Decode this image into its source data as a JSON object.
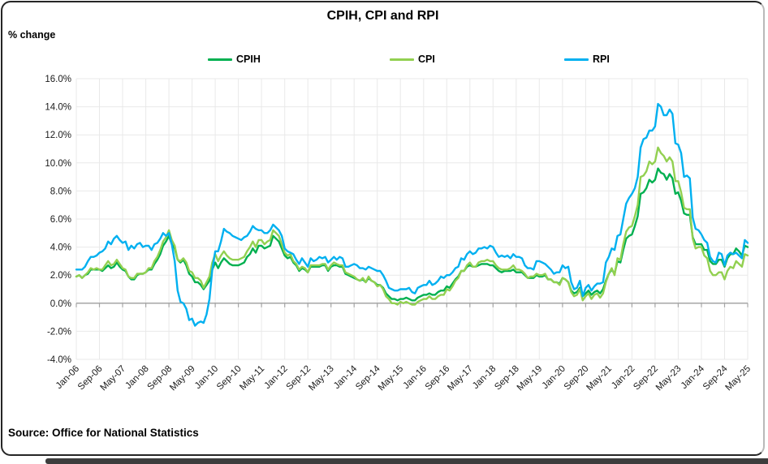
{
  "source_note": "Source: Office for National Statistics",
  "chart_data": {
    "type": "line",
    "title": "CPIH, CPI and RPI",
    "ylabel": "% change",
    "x_start": "Jan-06",
    "x_end": "May-25",
    "x_frequency": "monthly",
    "xticks": [
      "Jan-06",
      "Sep-06",
      "May-07",
      "Jan-08",
      "Sep-08",
      "May-09",
      "Jan-10",
      "Sep-10",
      "May-11",
      "Jan-12",
      "Sep-12",
      "May-13",
      "Jan-14",
      "Sep-14",
      "May-15",
      "Jan-16",
      "Sep-16",
      "May-17",
      "Jan-18",
      "Sep-18",
      "May-19",
      "Jan-20",
      "Sep-20",
      "May-21",
      "Jan-22",
      "Sep-22",
      "May-23",
      "Jan-24",
      "Sep-24",
      "May-25"
    ],
    "xtick_every": 8,
    "ylim": [
      -4,
      16
    ],
    "ytick_step": 2,
    "yticks": [
      -4,
      -2,
      0,
      2,
      4,
      6,
      8,
      10,
      12,
      14,
      16
    ],
    "ytick_labels": [
      "-4.0%",
      "-2.0%",
      "0.0%",
      "2.0%",
      "4.0%",
      "6.0%",
      "8.0%",
      "10.0%",
      "12.0%",
      "14.0%",
      "16.0%"
    ],
    "grid": true,
    "legend_position": "top",
    "colors": {
      "grid": "#e9e9e9",
      "axis": "#a6a6a6",
      "text": "#1a1a1a"
    },
    "series": [
      {
        "name": "CPIH",
        "color": "#00B050",
        "values": [
          1.9,
          2.0,
          1.8,
          2.0,
          2.1,
          2.4,
          2.4,
          2.4,
          2.4,
          2.3,
          2.5,
          2.7,
          2.5,
          2.6,
          2.9,
          2.6,
          2.4,
          2.3,
          1.9,
          1.7,
          1.7,
          2.0,
          2.1,
          2.1,
          2.2,
          2.4,
          2.4,
          2.8,
          3.1,
          3.5,
          4.1,
          4.4,
          4.8,
          4.2,
          3.9,
          3.1,
          2.9,
          3.1,
          2.7,
          2.1,
          1.9,
          1.5,
          1.5,
          1.3,
          1.0,
          1.3,
          1.6,
          2.4,
          2.9,
          2.5,
          2.9,
          3.2,
          3.0,
          2.8,
          2.7,
          2.7,
          2.7,
          2.8,
          2.9,
          3.3,
          3.5,
          3.9,
          3.6,
          4.1,
          4.1,
          3.9,
          4.0,
          4.1,
          4.8,
          4.6,
          4.4,
          3.9,
          3.4,
          3.2,
          3.3,
          2.9,
          2.7,
          2.3,
          2.5,
          2.4,
          2.2,
          2.6,
          2.6,
          2.6,
          2.6,
          2.7,
          2.7,
          2.3,
          2.6,
          2.7,
          2.7,
          2.6,
          2.6,
          2.1,
          2.0,
          1.9,
          1.8,
          1.7,
          1.6,
          1.7,
          1.5,
          1.8,
          1.6,
          1.5,
          1.3,
          1.3,
          1.1,
          0.7,
          0.5,
          0.3,
          0.3,
          0.2,
          0.3,
          0.3,
          0.4,
          0.3,
          0.2,
          0.2,
          0.4,
          0.5,
          0.6,
          0.6,
          0.7,
          0.6,
          0.6,
          0.8,
          0.9,
          0.9,
          1.2,
          1.1,
          1.4,
          1.7,
          1.9,
          2.3,
          2.3,
          2.6,
          2.7,
          2.6,
          2.6,
          2.7,
          2.8,
          2.8,
          2.8,
          2.7,
          2.7,
          2.5,
          2.3,
          2.2,
          2.3,
          2.3,
          2.3,
          2.4,
          2.2,
          2.2,
          2.2,
          2.0,
          1.8,
          1.8,
          1.8,
          2.0,
          1.9,
          1.9,
          2.0,
          1.7,
          1.7,
          1.5,
          1.5,
          1.4,
          1.8,
          1.7,
          1.5,
          0.9,
          0.7,
          0.8,
          1.1,
          0.5,
          0.7,
          0.9,
          0.6,
          0.8,
          0.9,
          0.7,
          1.0,
          1.6,
          2.1,
          2.4,
          2.1,
          3.0,
          2.9,
          3.8,
          4.6,
          4.8,
          4.9,
          5.5,
          6.2,
          7.8,
          7.9,
          8.2,
          8.8,
          8.6,
          8.8,
          9.6,
          9.3,
          9.2,
          8.8,
          9.2,
          8.9,
          7.8,
          7.9,
          7.3,
          6.4,
          6.3,
          6.3,
          4.7,
          4.2,
          4.2,
          4.2,
          3.8,
          3.8,
          3.0,
          2.8,
          2.8,
          3.1,
          3.1,
          2.6,
          3.2,
          3.5,
          3.5,
          3.9,
          3.7,
          3.4,
          4.1,
          4.0
        ]
      },
      {
        "name": "CPI",
        "color": "#92D050",
        "values": [
          1.9,
          2.0,
          1.8,
          2.0,
          2.2,
          2.5,
          2.4,
          2.5,
          2.4,
          2.4,
          2.7,
          3.0,
          2.7,
          2.8,
          3.1,
          2.8,
          2.5,
          2.4,
          1.9,
          1.8,
          1.8,
          2.1,
          2.1,
          2.1,
          2.2,
          2.5,
          2.5,
          3.0,
          3.3,
          3.8,
          4.4,
          4.7,
          5.2,
          4.5,
          4.1,
          3.1,
          3.0,
          3.2,
          2.9,
          2.3,
          2.2,
          1.8,
          1.8,
          1.6,
          1.1,
          1.5,
          1.9,
          2.9,
          3.5,
          3.0,
          3.4,
          3.7,
          3.4,
          3.2,
          3.1,
          3.1,
          3.1,
          3.2,
          3.3,
          3.7,
          4.0,
          4.4,
          4.0,
          4.5,
          4.5,
          4.2,
          4.4,
          4.5,
          5.2,
          5.0,
          4.8,
          4.2,
          3.6,
          3.4,
          3.5,
          3.0,
          2.8,
          2.4,
          2.6,
          2.5,
          2.2,
          2.7,
          2.7,
          2.7,
          2.7,
          2.8,
          2.8,
          2.4,
          2.7,
          2.9,
          2.8,
          2.7,
          2.7,
          2.2,
          2.1,
          2.0,
          1.9,
          1.7,
          1.6,
          1.8,
          1.5,
          1.9,
          1.6,
          1.5,
          1.2,
          1.3,
          1.0,
          0.5,
          0.3,
          0.0,
          0.0,
          -0.1,
          0.1,
          0.0,
          0.1,
          0.0,
          -0.1,
          -0.1,
          0.1,
          0.2,
          0.3,
          0.3,
          0.5,
          0.3,
          0.3,
          0.5,
          0.6,
          0.6,
          1.0,
          0.9,
          1.2,
          1.6,
          1.8,
          2.3,
          2.3,
          2.7,
          2.9,
          2.6,
          2.6,
          2.9,
          3.0,
          3.0,
          3.1,
          3.0,
          3.0,
          2.7,
          2.5,
          2.4,
          2.4,
          2.4,
          2.5,
          2.7,
          2.4,
          2.4,
          2.3,
          2.1,
          1.8,
          1.9,
          1.9,
          2.1,
          2.0,
          2.0,
          2.1,
          1.7,
          1.7,
          1.5,
          1.5,
          1.3,
          1.8,
          1.7,
          1.5,
          0.8,
          0.5,
          0.6,
          1.0,
          0.2,
          0.5,
          0.7,
          0.3,
          0.6,
          0.7,
          0.4,
          0.7,
          1.5,
          2.1,
          2.5,
          2.0,
          3.2,
          3.1,
          4.2,
          5.1,
          5.4,
          5.5,
          6.2,
          7.0,
          9.0,
          9.1,
          9.4,
          10.1,
          9.9,
          10.1,
          11.1,
          10.7,
          10.5,
          10.1,
          10.4,
          10.1,
          8.7,
          8.7,
          7.9,
          6.8,
          6.7,
          6.7,
          4.6,
          3.9,
          4.0,
          4.0,
          3.4,
          3.2,
          2.3,
          2.0,
          2.0,
          2.2,
          2.2,
          1.7,
          2.3,
          2.6,
          2.5,
          3.0,
          2.8,
          2.6,
          3.5,
          3.4
        ]
      },
      {
        "name": "RPI",
        "color": "#00B0F0",
        "values": [
          2.4,
          2.4,
          2.4,
          2.6,
          3.0,
          3.3,
          3.3,
          3.4,
          3.6,
          3.7,
          3.9,
          4.4,
          4.2,
          4.6,
          4.8,
          4.5,
          4.3,
          4.4,
          3.8,
          4.1,
          3.9,
          4.2,
          4.3,
          4.0,
          4.1,
          4.1,
          3.8,
          4.2,
          4.3,
          4.6,
          5.0,
          4.8,
          5.0,
          4.2,
          3.0,
          0.9,
          0.1,
          0.0,
          -0.4,
          -1.2,
          -1.1,
          -1.6,
          -1.4,
          -1.3,
          -1.4,
          -0.8,
          0.3,
          2.4,
          3.7,
          3.7,
          4.4,
          5.3,
          5.1,
          5.0,
          4.8,
          4.7,
          4.6,
          4.5,
          4.7,
          4.8,
          5.1,
          5.5,
          5.3,
          5.2,
          5.2,
          5.0,
          5.0,
          5.2,
          5.6,
          5.4,
          5.2,
          4.8,
          3.9,
          3.7,
          3.6,
          3.5,
          3.1,
          2.8,
          3.2,
          2.9,
          2.6,
          3.2,
          3.0,
          3.1,
          3.3,
          3.2,
          3.3,
          2.9,
          3.1,
          3.3,
          3.1,
          3.3,
          3.2,
          2.6,
          2.6,
          2.7,
          2.8,
          2.7,
          2.5,
          2.5,
          2.4,
          2.6,
          2.5,
          2.4,
          2.3,
          2.3,
          2.0,
          1.6,
          1.1,
          1.0,
          0.9,
          0.9,
          1.0,
          1.0,
          1.0,
          1.1,
          0.8,
          0.7,
          1.1,
          1.2,
          1.3,
          1.3,
          1.6,
          1.3,
          1.4,
          1.6,
          1.9,
          1.8,
          2.0,
          2.0,
          2.2,
          2.5,
          2.6,
          3.2,
          3.1,
          3.5,
          3.7,
          3.5,
          3.6,
          3.9,
          3.9,
          4.0,
          3.9,
          4.1,
          4.0,
          3.6,
          3.3,
          3.4,
          3.3,
          3.4,
          3.2,
          3.5,
          3.3,
          3.3,
          3.2,
          2.7,
          2.5,
          2.5,
          2.4,
          3.0,
          3.0,
          2.9,
          2.8,
          2.6,
          2.4,
          2.1,
          2.2,
          2.2,
          2.7,
          2.5,
          2.6,
          1.5,
          1.0,
          1.1,
          1.6,
          0.5,
          1.1,
          1.3,
          0.9,
          1.2,
          1.4,
          1.4,
          1.5,
          2.9,
          3.3,
          3.9,
          3.8,
          4.8,
          4.9,
          6.0,
          7.1,
          7.5,
          7.8,
          8.2,
          9.0,
          11.1,
          11.7,
          11.8,
          12.3,
          12.3,
          12.6,
          14.2,
          14.0,
          13.4,
          13.4,
          13.8,
          13.5,
          11.4,
          11.3,
          10.7,
          9.0,
          9.1,
          8.9,
          6.1,
          5.3,
          5.2,
          4.9,
          4.5,
          4.3,
          3.3,
          3.0,
          2.9,
          3.6,
          3.5,
          2.7,
          3.4,
          3.6,
          3.5,
          3.6,
          3.4,
          3.2,
          4.5,
          4.3
        ]
      }
    ]
  }
}
